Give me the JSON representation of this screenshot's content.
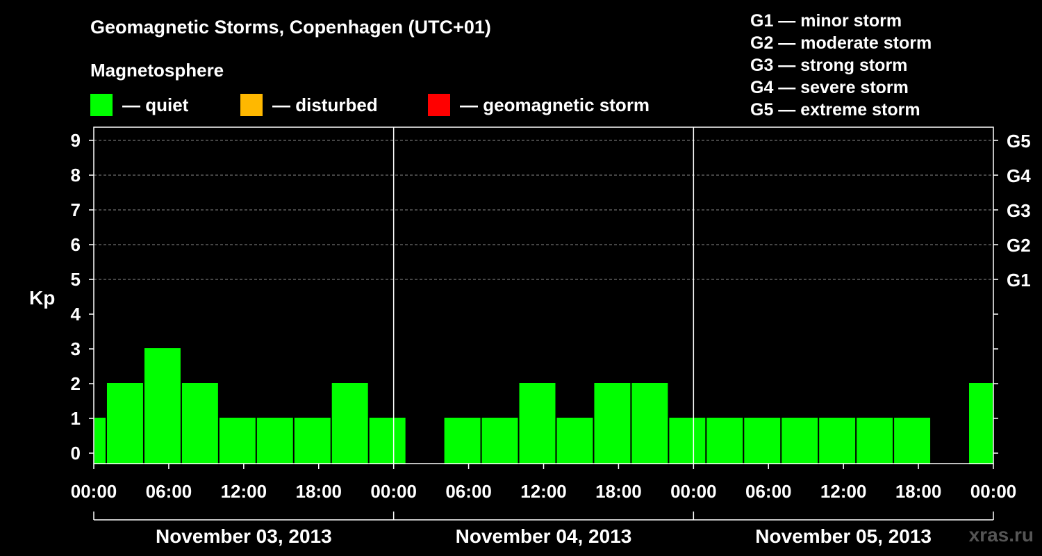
{
  "title": "Geomagnetic Storms, Copenhagen (UTC+01)",
  "magnetosphere": {
    "heading": "Magnetosphere",
    "legend": [
      {
        "label": "— quiet",
        "color": "#00ff00"
      },
      {
        "label": "— disturbed",
        "color": "#ffb800"
      },
      {
        "label": "— geomagnetic storm",
        "color": "#ff0000"
      }
    ]
  },
  "storm_scale": [
    "G1 — minor storm",
    "G2 — moderate storm",
    "G3 — strong storm",
    "G4 — severe storm",
    "G5 — extreme storm"
  ],
  "watermark": "xras.ru",
  "chart_data": {
    "type": "bar",
    "title": "Geomagnetic Storms, Copenhagen (UTC+01)",
    "ylabel": "Kp",
    "ylim": [
      0,
      9
    ],
    "yticks": [
      "0",
      "1",
      "2",
      "3",
      "4",
      "5",
      "6",
      "7",
      "8",
      "9"
    ],
    "right_axis": [
      {
        "kp": 5,
        "label": "G1"
      },
      {
        "kp": 6,
        "label": "G2"
      },
      {
        "kp": 7,
        "label": "G3"
      },
      {
        "kp": 8,
        "label": "G4"
      },
      {
        "kp": 9,
        "label": "G5"
      }
    ],
    "xticks": [
      "00:00",
      "06:00",
      "12:00",
      "18:00",
      "00:00",
      "06:00",
      "12:00",
      "18:00",
      "00:00",
      "06:00",
      "12:00",
      "18:00",
      "00:00"
    ],
    "days": [
      "November 03, 2013",
      "November 04, 2013",
      "November 05, 2013"
    ],
    "bar_interval_hours": 3,
    "bars": [
      {
        "start_hour": 0,
        "end_hour": 1,
        "kp": 1
      },
      {
        "start_hour": 1,
        "end_hour": 4,
        "kp": 2
      },
      {
        "start_hour": 4,
        "end_hour": 7,
        "kp": 3
      },
      {
        "start_hour": 7,
        "end_hour": 10,
        "kp": 2
      },
      {
        "start_hour": 10,
        "end_hour": 13,
        "kp": 1
      },
      {
        "start_hour": 13,
        "end_hour": 16,
        "kp": 1
      },
      {
        "start_hour": 16,
        "end_hour": 19,
        "kp": 1
      },
      {
        "start_hour": 19,
        "end_hour": 22,
        "kp": 2
      },
      {
        "start_hour": 22,
        "end_hour": 25,
        "kp": 1
      },
      {
        "start_hour": 28,
        "end_hour": 31,
        "kp": 1
      },
      {
        "start_hour": 31,
        "end_hour": 34,
        "kp": 1
      },
      {
        "start_hour": 34,
        "end_hour": 37,
        "kp": 2
      },
      {
        "start_hour": 37,
        "end_hour": 40,
        "kp": 1
      },
      {
        "start_hour": 40,
        "end_hour": 43,
        "kp": 2
      },
      {
        "start_hour": 43,
        "end_hour": 46,
        "kp": 2
      },
      {
        "start_hour": 46,
        "end_hour": 49,
        "kp": 1
      },
      {
        "start_hour": 49,
        "end_hour": 52,
        "kp": 1
      },
      {
        "start_hour": 52,
        "end_hour": 55,
        "kp": 1
      },
      {
        "start_hour": 55,
        "end_hour": 58,
        "kp": 1
      },
      {
        "start_hour": 58,
        "end_hour": 61,
        "kp": 1
      },
      {
        "start_hour": 61,
        "end_hour": 64,
        "kp": 1
      },
      {
        "start_hour": 64,
        "end_hour": 67,
        "kp": 1
      },
      {
        "start_hour": 70,
        "end_hour": 72,
        "kp": 2
      }
    ]
  }
}
